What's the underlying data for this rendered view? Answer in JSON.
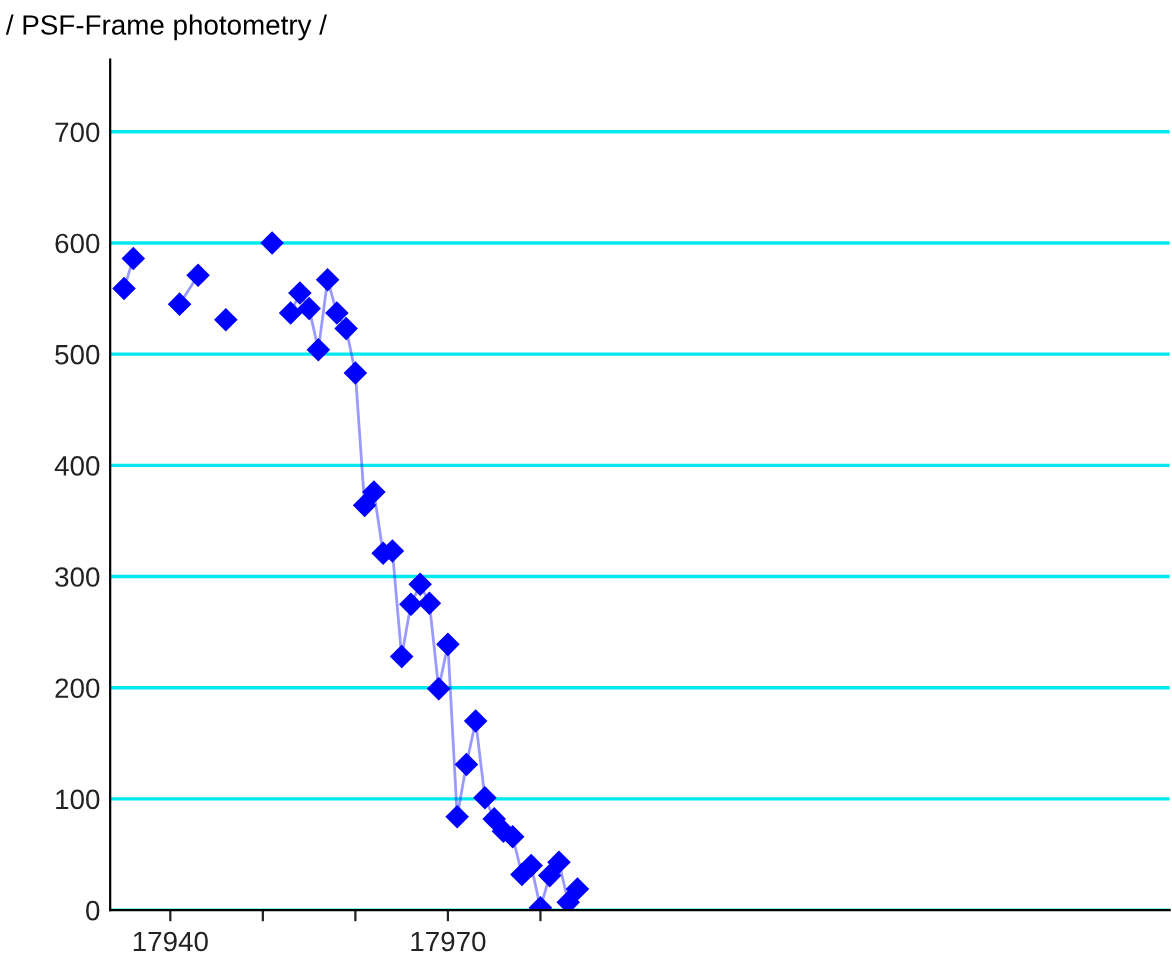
{
  "chart_data": {
    "type": "line",
    "title": "/ PSF-Frame photometry /",
    "x": [
      17935,
      17936,
      17938,
      17941,
      17943,
      17944,
      17946,
      17948,
      17951,
      17952,
      17953,
      17954,
      17955,
      17956,
      17957,
      17958,
      17959,
      17960,
      17961,
      17962,
      17963,
      17964,
      17965,
      17966,
      17967,
      17968,
      17969,
      17970,
      17971,
      17972,
      17973,
      17974,
      17975,
      17976,
      17977,
      17978,
      17979,
      17980,
      17981,
      17982,
      17983,
      17984
    ],
    "series": [
      {
        "color": "#0000ff",
        "values": [
          559,
          586,
          null,
          545,
          571,
          null,
          531,
          null,
          600,
          null,
          537,
          555,
          541,
          504,
          567,
          537,
          523,
          483,
          364,
          376,
          321,
          323,
          228,
          275,
          293,
          276,
          199,
          239,
          84,
          131,
          170,
          101,
          82,
          71,
          66,
          32,
          40,
          2,
          31,
          43,
          7,
          19
        ]
      }
    ],
    "xlim": [
      17933.5,
      18048
    ],
    "xticks": [
      17940,
      {
        "value": 17950,
        "label": null
      },
      {
        "value": 17960,
        "label": null
      },
      17970,
      {
        "value": 17980,
        "label": null
      }
    ],
    "ylim": [
      0,
      765
    ],
    "yticks": [
      0,
      100,
      200,
      300,
      400,
      500,
      600,
      700
    ],
    "grid": "y",
    "marker": "diamond",
    "line_style": "solid",
    "legend": false
  }
}
